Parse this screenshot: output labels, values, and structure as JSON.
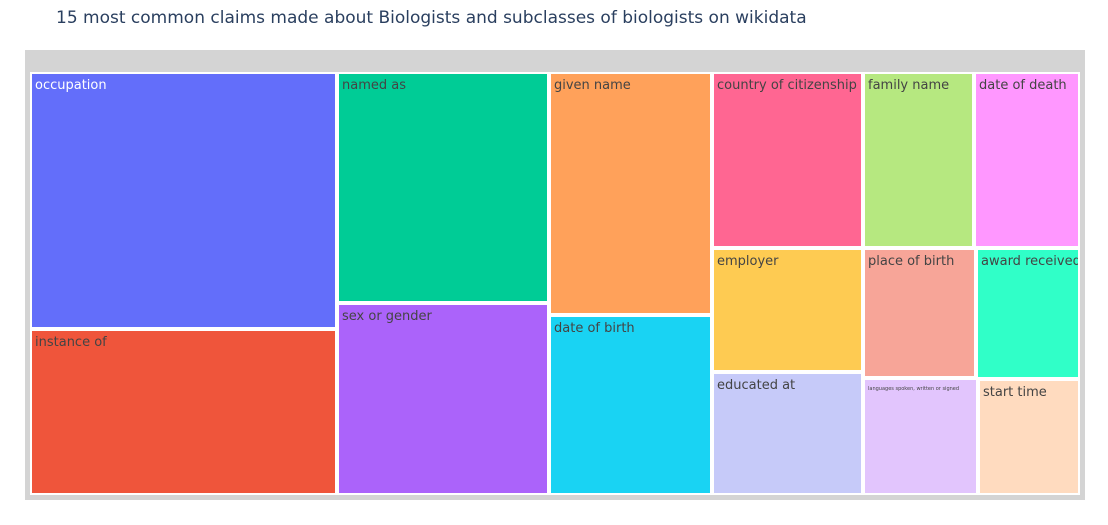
{
  "chart_data": {
    "type": "treemap",
    "title": "15 most common claims made about Biologists and subclasses of biologists on wikidata",
    "items": [
      {
        "label": "occupation",
        "value": 15.4,
        "color": "#636efa",
        "text_color": "#ffffff"
      },
      {
        "label": "instance of",
        "value": 10.1,
        "color": "#ef553b",
        "text_color": "#444444"
      },
      {
        "label": "named as",
        "value": 8.9,
        "color": "#00cc96",
        "text_color": "#444444"
      },
      {
        "label": "sex or gender",
        "value": 7.7,
        "color": "#ab63fa",
        "text_color": "#444444"
      },
      {
        "label": "given name",
        "value": 7.6,
        "color": "#ffa15a",
        "text_color": "#444444"
      },
      {
        "label": "date of birth",
        "value": 5.5,
        "color": "#19d3f3",
        "text_color": "#444444"
      },
      {
        "label": "country of citizenship",
        "value": 4.8,
        "color": "#ff6692",
        "text_color": "#444444"
      },
      {
        "label": "employer",
        "value": 3.4,
        "color": "#fecb52",
        "text_color": "#444444"
      },
      {
        "label": "educated at",
        "value": 3.3,
        "color": "#c6caf9",
        "text_color": "#444444"
      },
      {
        "label": "family name",
        "value": 3.1,
        "color": "#b6e880",
        "text_color": "#444444"
      },
      {
        "label": "place of birth",
        "value": 2.6,
        "color": "#f7a598",
        "text_color": "#444444"
      },
      {
        "label": "languages spoken, written or signed",
        "value": 2.3,
        "color": "#e2c5fd",
        "text_color": "#444444"
      },
      {
        "label": "date of death",
        "value": 3.0,
        "color": "#ff97ff",
        "text_color": "#444444"
      },
      {
        "label": "award received",
        "value": 2.2,
        "color": "#30ffc8",
        "text_color": "#444444"
      },
      {
        "label": "start time",
        "value": 1.9,
        "color": "#ffdbbf",
        "text_color": "#444444"
      }
    ]
  }
}
